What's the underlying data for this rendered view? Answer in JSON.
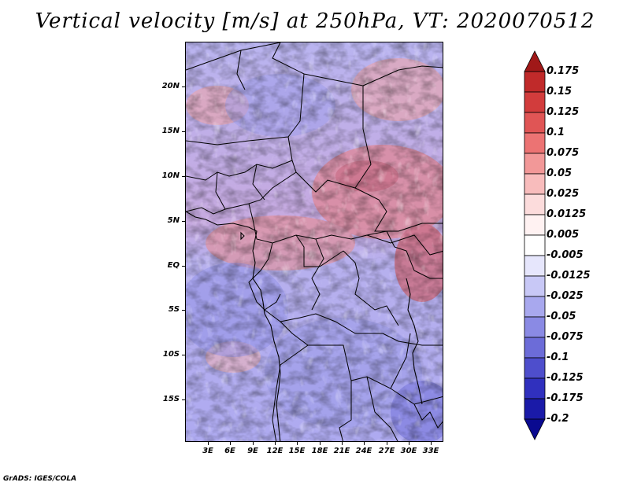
{
  "title": "Vertical velocity [m/s] at 250hPa, VT: 2020070512",
  "footer": "GrADS: IGES/COLA",
  "map": {
    "lat_labels": [
      "20N",
      "15N",
      "10N",
      "5N",
      "EQ",
      "5S",
      "10S",
      "15S"
    ],
    "lon_labels": [
      "3E",
      "6E",
      "9E",
      "12E",
      "15E",
      "18E",
      "21E",
      "24E",
      "27E",
      "30E",
      "33E"
    ]
  },
  "colorbar": {
    "levels": [
      "0.175",
      "0.15",
      "0.125",
      "0.1",
      "0.075",
      "0.05",
      "0.025",
      "0.0125",
      "0.005",
      "-0.005",
      "-0.0125",
      "-0.025",
      "-0.05",
      "-0.075",
      "-0.1",
      "-0.125",
      "-0.175",
      "-0.2"
    ],
    "colors": [
      "#a01818",
      "#c02a2a",
      "#d23c3c",
      "#e05555",
      "#ec7373",
      "#f29898",
      "#f8bcbc",
      "#fcdcdc",
      "#fff2f2",
      "#ffffff",
      "#e6e6fc",
      "#c8c8f6",
      "#a8a8ee",
      "#8a8ae4",
      "#6c6cd8",
      "#4e4ecc",
      "#3030be",
      "#1a1aa8",
      "#0a0a90"
    ]
  }
}
